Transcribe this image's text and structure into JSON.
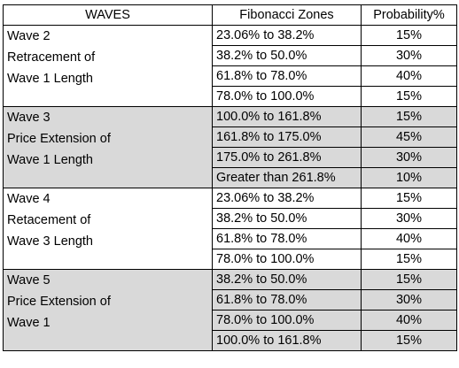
{
  "headers": {
    "waves": "WAVES",
    "zones": "Fibonacci Zones",
    "probability": "Probability%"
  },
  "groups": [
    {
      "label_lines": [
        "Wave 2",
        "Retracement of",
        "Wave 1 Length"
      ],
      "rows": [
        {
          "zone": "23.06% to 38.2%",
          "prob": "15%"
        },
        {
          "zone": "38.2% to 50.0%",
          "prob": "30%"
        },
        {
          "zone": "61.8% to 78.0%",
          "prob": "40%"
        },
        {
          "zone": "78.0% to 100.0%",
          "prob": "15%"
        }
      ]
    },
    {
      "label_lines": [
        "Wave 3",
        "Price Extension of",
        "Wave 1 Length"
      ],
      "rows": [
        {
          "zone": "100.0% to 161.8%",
          "prob": "15%"
        },
        {
          "zone": "161.8% to 175.0%",
          "prob": "45%"
        },
        {
          "zone": "175.0% to 261.8%",
          "prob": "30%"
        },
        {
          "zone": "Greater than 261.8%",
          "prob": "10%"
        }
      ]
    },
    {
      "label_lines": [
        "Wave 4",
        "Retacement of",
        "Wave 3 Length"
      ],
      "rows": [
        {
          "zone": "23.06% to 38.2%",
          "prob": "15%"
        },
        {
          "zone": "38.2% to 50.0%",
          "prob": "30%"
        },
        {
          "zone": "61.8% to 78.0%",
          "prob": "40%"
        },
        {
          "zone": "78.0% to 100.0%",
          "prob": "15%"
        }
      ]
    },
    {
      "label_lines": [
        "Wave 5",
        "Price Extension of",
        "Wave 1"
      ],
      "rows": [
        {
          "zone": "38.2% to 50.0%",
          "prob": "15%"
        },
        {
          "zone": "61.8% to 78.0%",
          "prob": "30%"
        },
        {
          "zone": "78.0% to 100.0%",
          "prob": "40%"
        },
        {
          "zone": "100.0% to 161.8%",
          "prob": "15%"
        }
      ]
    }
  ]
}
